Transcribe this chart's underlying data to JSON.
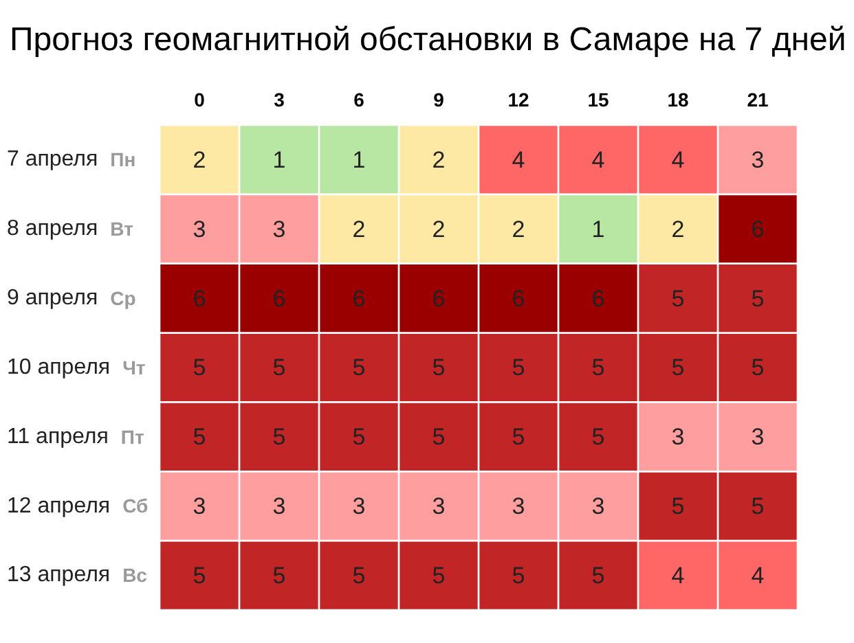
{
  "chart_data": {
    "type": "heatmap",
    "title": "Прогноз геомагнитной обстановки в Самаре на 7 дней",
    "categories": [
      "0",
      "3",
      "6",
      "9",
      "12",
      "15",
      "18",
      "21"
    ],
    "y_categories": [
      "7 апреля",
      "8 апреля",
      "9 апреля",
      "10 апреля",
      "11 апреля",
      "12 апреля",
      "13 апреля"
    ],
    "y2_categories": [
      "Пн",
      "Вт",
      "Ср",
      "Чт",
      "Пт",
      "Сб",
      "Вс"
    ],
    "cells": [
      [
        2,
        1,
        1,
        2,
        4,
        4,
        4,
        3
      ],
      [
        3,
        3,
        2,
        2,
        2,
        1,
        2,
        6
      ],
      [
        6,
        6,
        6,
        6,
        6,
        6,
        5,
        5
      ],
      [
        5,
        5,
        5,
        5,
        5,
        5,
        5,
        5
      ],
      [
        5,
        5,
        5,
        5,
        5,
        5,
        3,
        3
      ],
      [
        3,
        3,
        3,
        3,
        3,
        3,
        5,
        5
      ],
      [
        5,
        5,
        5,
        5,
        5,
        5,
        4,
        4
      ]
    ],
    "colors": [
      [
        "#fde9a4",
        "#b8e6a3",
        "#b8e6a3",
        "#fde9a4",
        "#ff6767",
        "#ff6767",
        "#ff6767",
        "#ff9e9e"
      ],
      [
        "#ff9e9e",
        "#ff9e9e",
        "#fde9a4",
        "#fde9a4",
        "#fde9a4",
        "#b8e6a3",
        "#fde9a4",
        "#9a0000"
      ],
      [
        "#9a0000",
        "#9a0000",
        "#9a0000",
        "#9a0000",
        "#9a0000",
        "#9a0000",
        "#c12526",
        "#c12526"
      ],
      [
        "#c12526",
        "#c12526",
        "#c12526",
        "#c12526",
        "#c12526",
        "#c12526",
        "#c12526",
        "#c12526"
      ],
      [
        "#c12526",
        "#c12526",
        "#c12526",
        "#c12526",
        "#c12526",
        "#c12526",
        "#ff9e9e",
        "#ff9e9e"
      ],
      [
        "#ff9e9e",
        "#ff9e9e",
        "#ff9e9e",
        "#ff9e9e",
        "#ff9e9e",
        "#ff9e9e",
        "#c12526",
        "#c12526"
      ],
      [
        "#c12526",
        "#c12526",
        "#c12526",
        "#c12526",
        "#c12526",
        "#c12526",
        "#ff6767",
        "#ff6767"
      ]
    ],
    "data_labels": true
  }
}
